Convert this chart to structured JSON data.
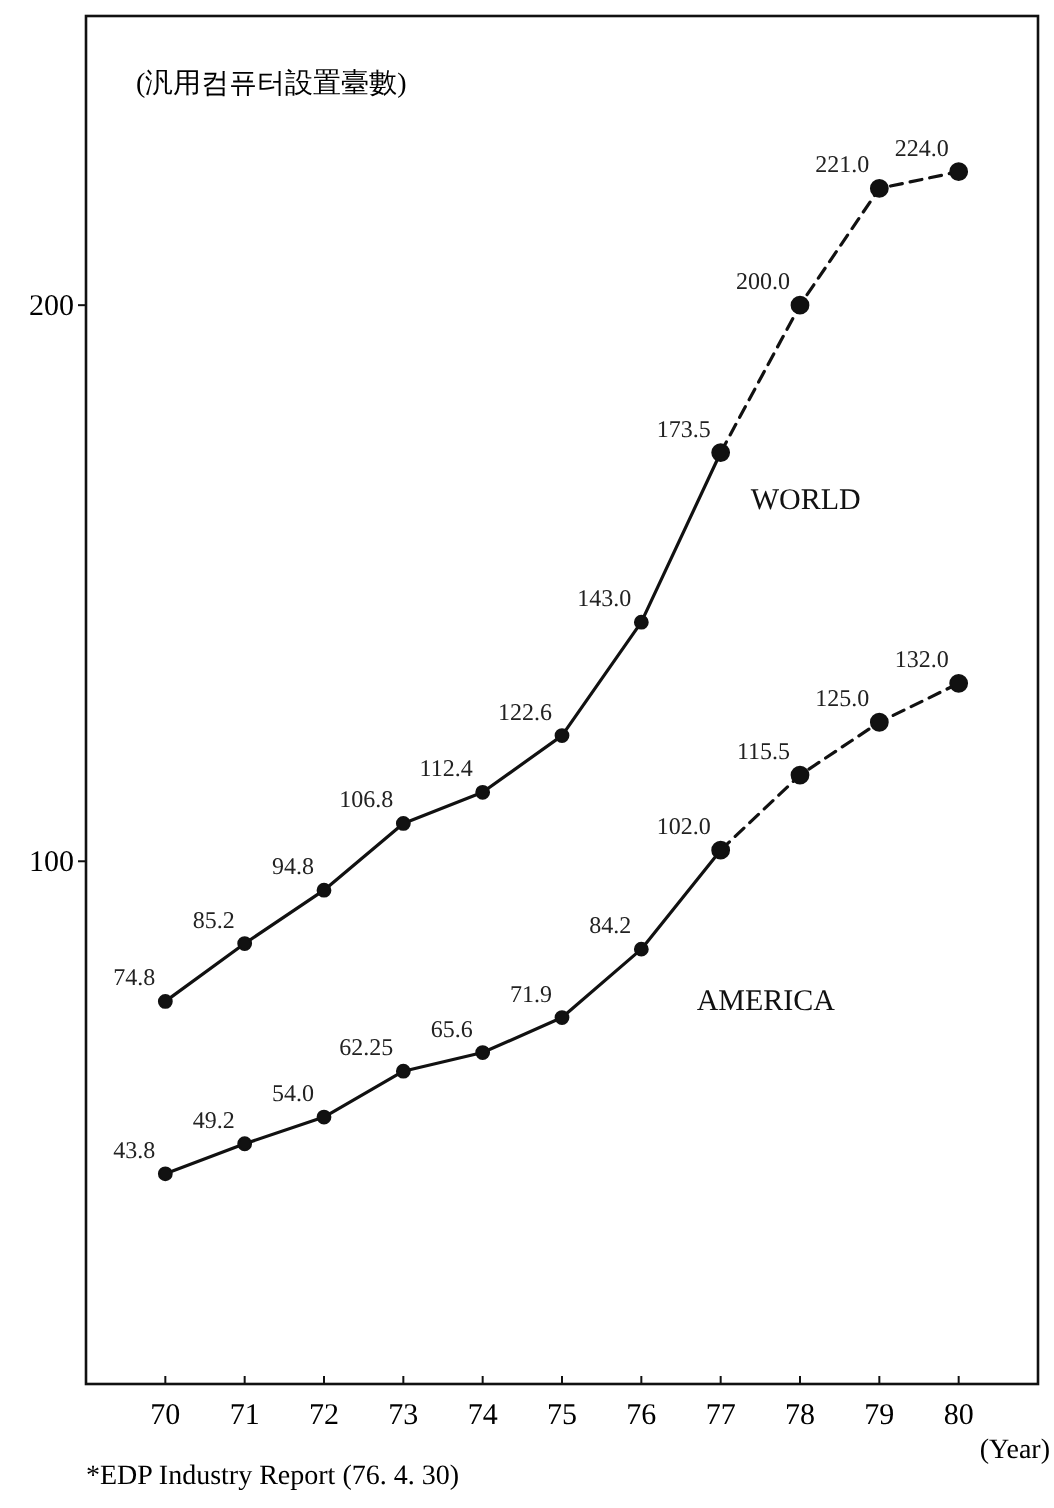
{
  "chart_data": {
    "type": "line",
    "subtitle": "(汎用컴퓨터設置臺數)",
    "xlabel": "(Year)",
    "annotations": [
      "*EDP Industry Report (76. 4. 30)"
    ],
    "categories": [
      "70",
      "71",
      "72",
      "73",
      "74",
      "75",
      "76",
      "77",
      "78",
      "79",
      "80"
    ],
    "ylim": [
      6,
      252
    ],
    "yticks": [
      100,
      200
    ],
    "grid": false,
    "marker": "circle",
    "series": [
      {
        "name": "WORLD",
        "color": "#111111",
        "line_style": "solid",
        "values": [
          74.8,
          85.2,
          94.8,
          106.8,
          112.4,
          122.6,
          143.0,
          173.5,
          null,
          null,
          null
        ],
        "value_labels": [
          "74.8",
          "85.2",
          "94.8",
          "106.8",
          "112.4",
          "122.6",
          "143.0",
          "173.5",
          null,
          null,
          null
        ]
      },
      {
        "color": "#111111",
        "line_style": "dashed",
        "values": [
          null,
          null,
          null,
          null,
          null,
          null,
          null,
          173.5,
          200.0,
          221.0,
          224.0
        ],
        "value_labels": [
          null,
          null,
          null,
          null,
          null,
          null,
          null,
          null,
          "200.0",
          "221.0",
          "224.0"
        ]
      },
      {
        "name": "AMERICA",
        "color": "#111111",
        "line_style": "solid",
        "values": [
          43.8,
          49.2,
          54.0,
          62.25,
          65.6,
          71.9,
          84.2,
          102.0,
          null,
          null,
          null
        ],
        "value_labels": [
          "43.8",
          "49.2",
          "54.0",
          "62.25",
          "65.6",
          "71.9",
          "84.2",
          "102.0",
          null,
          null,
          null
        ]
      },
      {
        "color": "#111111",
        "line_style": "dashed",
        "values": [
          null,
          null,
          null,
          null,
          null,
          null,
          null,
          102.0,
          115.5,
          125.0,
          132.0
        ],
        "value_labels": [
          null,
          null,
          null,
          null,
          null,
          null,
          null,
          null,
          "115.5",
          "125.0",
          "132.0"
        ]
      }
    ]
  }
}
